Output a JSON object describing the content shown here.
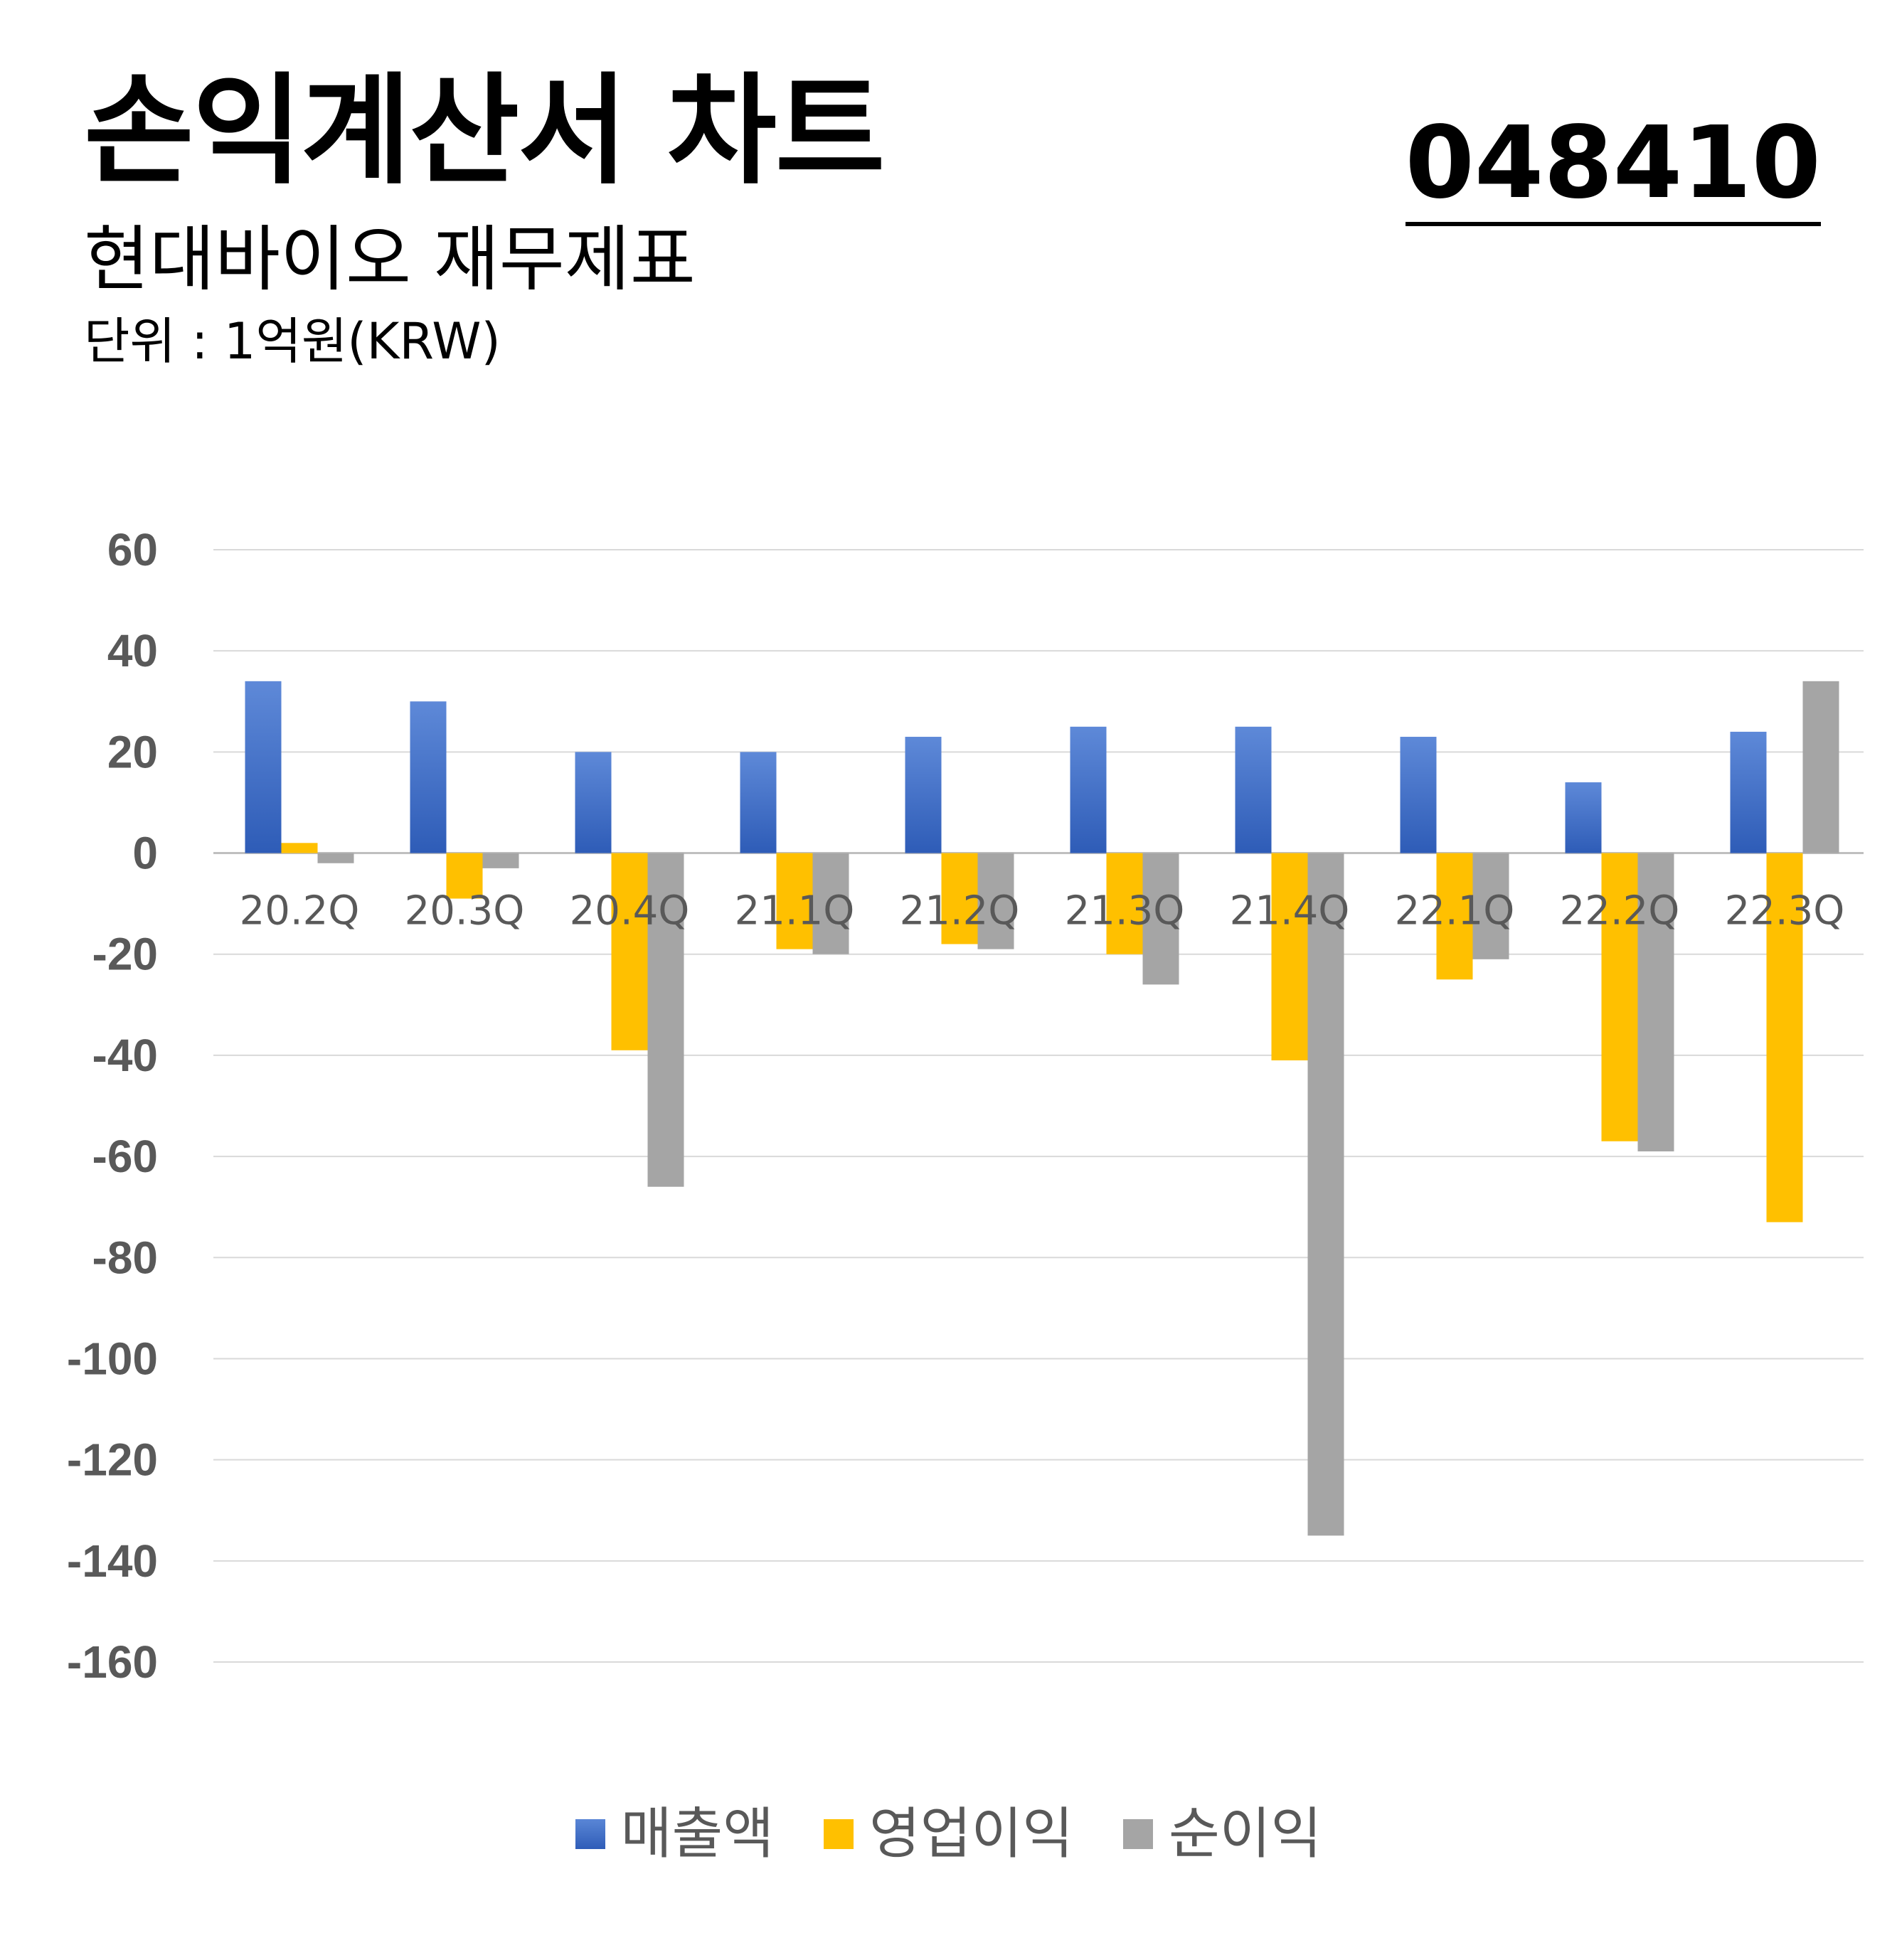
{
  "header": {
    "title": "손익계산서 차트",
    "code": "048410",
    "subtitle": "현대바이오 재무제표",
    "unit": "단위 : 1억원(KRW)"
  },
  "colors": {
    "revenue": "#4472C4",
    "operating": "#FFC000",
    "net": "#A5A5A5",
    "grid": "#D9D9D9"
  },
  "chart_data": {
    "type": "bar",
    "categories": [
      "20.2Q",
      "20.3Q",
      "20.4Q",
      "21.1Q",
      "21.2Q",
      "21.3Q",
      "21.4Q",
      "22.1Q",
      "22.2Q",
      "22.3Q"
    ],
    "series": [
      {
        "name": "매출액",
        "values": [
          34,
          30,
          20,
          20,
          23,
          25,
          25,
          23,
          14,
          24
        ]
      },
      {
        "name": "영업이익",
        "values": [
          2,
          -9,
          -39,
          -19,
          -18,
          -20,
          -41,
          -25,
          -57,
          -73
        ]
      },
      {
        "name": "순이익",
        "values": [
          -2,
          -3,
          -66,
          -20,
          -19,
          -26,
          -135,
          -21,
          -59,
          34
        ]
      }
    ],
    "yticks": [
      "60",
      "40",
      "20",
      "0",
      "-20",
      "-40",
      "-60",
      "-80",
      "-100",
      "-120",
      "-140",
      "-160"
    ],
    "ylim": [
      -160,
      60
    ],
    "grid": true,
    "legend_position": "bottom"
  }
}
